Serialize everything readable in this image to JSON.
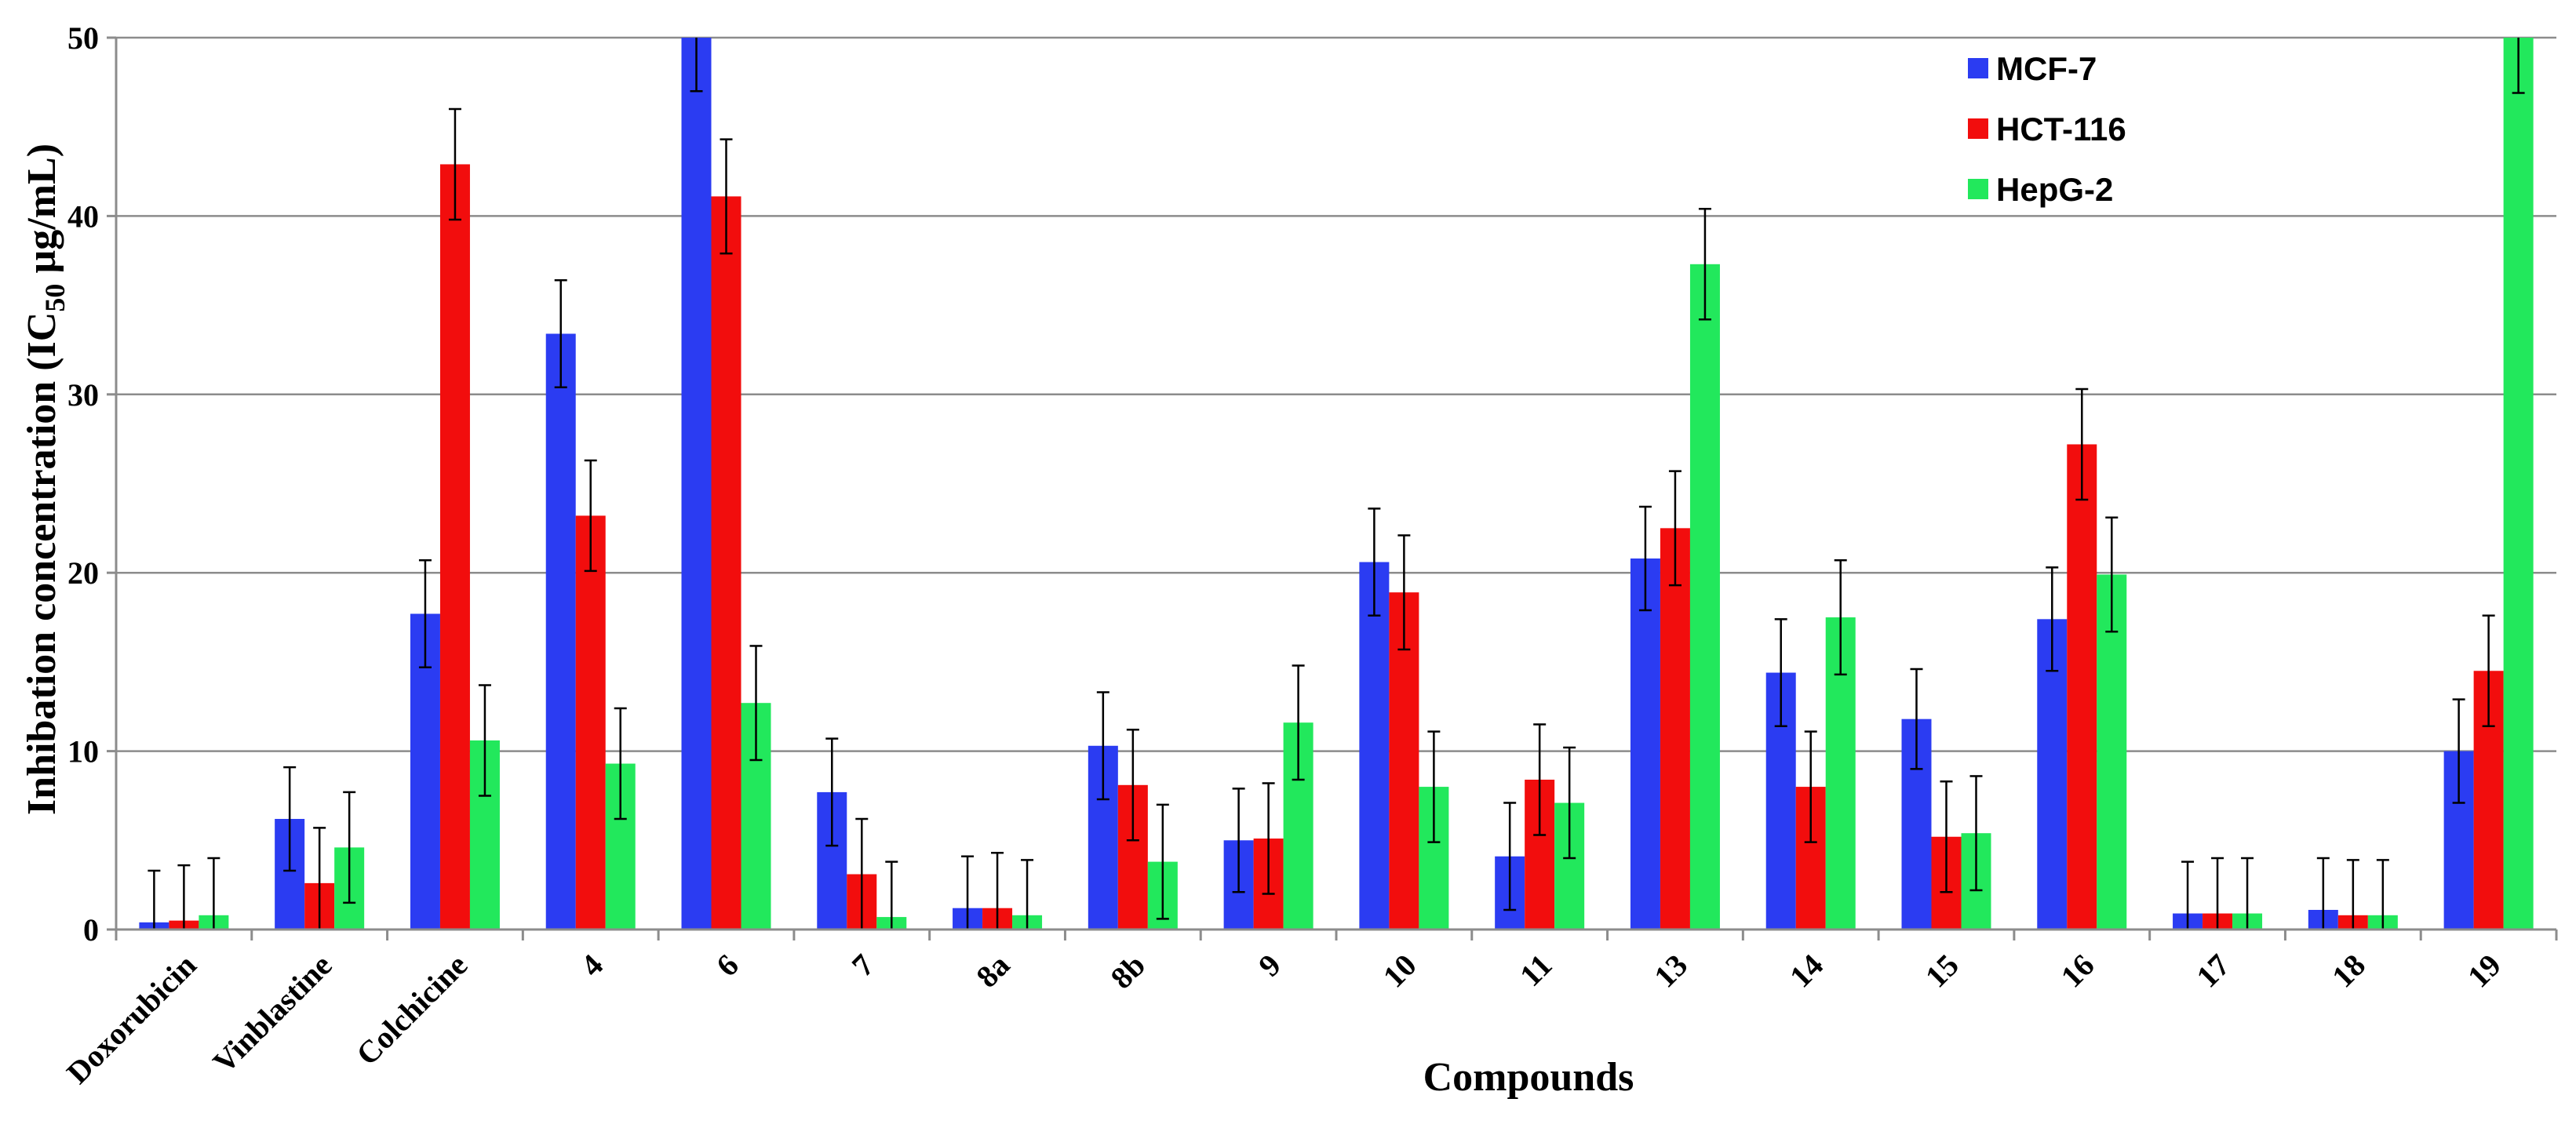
{
  "chart_data": {
    "type": "bar",
    "title": "",
    "xlabel": "Compounds",
    "ylabel_main": "Inhibation concentration (IC",
    "ylabel_sub": "50",
    "ylabel_end": "  µg/mL)",
    "ylim": [
      0,
      50
    ],
    "yticks": [
      "0",
      "10",
      "20",
      "30",
      "40",
      "50"
    ],
    "ytick_values": [
      0,
      10,
      20,
      30,
      40,
      50
    ],
    "grid": true,
    "legend_position": "top-right",
    "categories": [
      "Doxorubicin",
      "Vinblastine",
      "Colchicine",
      "4",
      "6",
      "7",
      "8a",
      "8b",
      "9",
      "10",
      "11",
      "13",
      "14",
      "15",
      "16",
      "17",
      "18",
      "19"
    ],
    "series": [
      {
        "name": "MCF-7",
        "color": "#2b3cf2",
        "values": [
          0.4,
          6.2,
          17.7,
          33.4,
          50,
          7.7,
          1.2,
          10.3,
          5.0,
          20.6,
          4.1,
          20.8,
          14.4,
          11.8,
          17.4,
          0.9,
          1.1,
          10.0
        ],
        "errors": [
          2.9,
          2.9,
          3.0,
          3.0,
          3.0,
          3.0,
          2.9,
          3.0,
          2.9,
          3.0,
          3.0,
          2.9,
          3.0,
          2.8,
          2.9,
          2.9,
          2.9,
          2.9
        ]
      },
      {
        "name": "HCT-116",
        "color": "#f20d0d",
        "values": [
          0.5,
          2.6,
          42.9,
          23.2,
          41.1,
          3.1,
          1.2,
          8.1,
          5.1,
          18.9,
          8.4,
          22.5,
          8.0,
          5.2,
          27.2,
          0.9,
          0.8,
          14.5
        ],
        "errors": [
          3.1,
          3.1,
          3.1,
          3.1,
          3.2,
          3.1,
          3.1,
          3.1,
          3.1,
          3.2,
          3.1,
          3.2,
          3.1,
          3.1,
          3.1,
          3.1,
          3.1,
          3.1
        ]
      },
      {
        "name": "HepG-2",
        "color": "#22e85c",
        "values": [
          0.8,
          4.6,
          10.6,
          9.3,
          12.7,
          0.7,
          0.8,
          3.8,
          11.6,
          8.0,
          7.1,
          37.3,
          17.5,
          5.4,
          19.9,
          0.9,
          0.8,
          50
        ],
        "errors": [
          3.2,
          3.1,
          3.1,
          3.1,
          3.2,
          3.1,
          3.1,
          3.2,
          3.2,
          3.1,
          3.1,
          3.1,
          3.2,
          3.2,
          3.2,
          3.1,
          3.1,
          3.1
        ]
      }
    ]
  }
}
